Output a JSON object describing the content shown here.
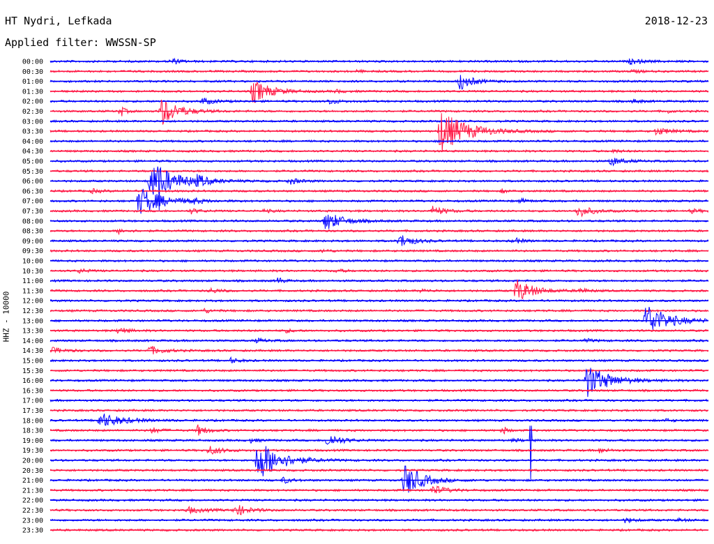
{
  "header": {
    "station": "HT Nydri, Lefkada",
    "date": "2018-12-23",
    "filter": "Applied filter: WWSSN-SP"
  },
  "channel_label": "HHZ - 10000",
  "colors": {
    "even_row": "#0000ff",
    "odd_row": "#ff1744"
  },
  "chart_data": {
    "type": "line",
    "title": "HT Nydri, Lefkada",
    "subtitle": "Applied filter: WWSSN-SP",
    "ylabel": "HHZ - 10000",
    "xlabel": "",
    "grid": false,
    "row_labels": [
      "00:00",
      "00:30",
      "01:00",
      "01:30",
      "02:00",
      "02:30",
      "03:00",
      "03:30",
      "04:00",
      "04:30",
      "05:00",
      "05:30",
      "06:00",
      "06:30",
      "07:00",
      "07:30",
      "08:00",
      "08:30",
      "09:00",
      "09:30",
      "10:00",
      "10:30",
      "11:00",
      "11:30",
      "12:00",
      "12:30",
      "13:00",
      "13:30",
      "14:00",
      "14:30",
      "15:00",
      "15:30",
      "16:00",
      "16:30",
      "17:00",
      "17:30",
      "18:00",
      "18:30",
      "19:00",
      "19:30",
      "20:00",
      "20:30",
      "21:00",
      "21:30",
      "22:00",
      "22:30",
      "23:00",
      "23:30"
    ],
    "row_duration_minutes": 30,
    "events": [
      {
        "row": 0,
        "t": 0.19,
        "amp": 0.6,
        "dur": 0.02
      },
      {
        "row": 0,
        "t": 0.89,
        "amp": 0.5,
        "dur": 0.03
      },
      {
        "row": 1,
        "t": 0.47,
        "amp": 0.2,
        "dur": 0.02
      },
      {
        "row": 1,
        "t": 0.89,
        "amp": 0.3,
        "dur": 0.02
      },
      {
        "row": 2,
        "t": 0.63,
        "amp": 1.8,
        "dur": 0.03
      },
      {
        "row": 3,
        "t": 0.32,
        "amp": 2.5,
        "dur": 0.04
      },
      {
        "row": 3,
        "t": 0.44,
        "amp": 0.3,
        "dur": 0.02
      },
      {
        "row": 4,
        "t": 0.24,
        "amp": 0.6,
        "dur": 0.03
      },
      {
        "row": 4,
        "t": 0.43,
        "amp": 0.6,
        "dur": 0.02
      },
      {
        "row": 4,
        "t": 0.89,
        "amp": 0.4,
        "dur": 0.02
      },
      {
        "row": 5,
        "t": 0.11,
        "amp": 1.2,
        "dur": 0.01
      },
      {
        "row": 5,
        "t": 0.18,
        "amp": 3.0,
        "dur": 0.04
      },
      {
        "row": 5,
        "t": 0.94,
        "amp": 0.4,
        "dur": 0.01
      },
      {
        "row": 7,
        "t": 0.61,
        "amp": 4.5,
        "dur": 0.06
      },
      {
        "row": 7,
        "t": 0.93,
        "amp": 0.8,
        "dur": 0.03
      },
      {
        "row": 9,
        "t": 0.86,
        "amp": 0.3,
        "dur": 0.02
      },
      {
        "row": 10,
        "t": 0.86,
        "amp": 0.9,
        "dur": 0.03
      },
      {
        "row": 12,
        "t": 0.17,
        "amp": 4.0,
        "dur": 0.06
      },
      {
        "row": 12,
        "t": 0.23,
        "amp": 0.9,
        "dur": 0.02
      },
      {
        "row": 12,
        "t": 0.37,
        "amp": 0.7,
        "dur": 0.02
      },
      {
        "row": 13,
        "t": 0.07,
        "amp": 0.4,
        "dur": 0.02
      },
      {
        "row": 13,
        "t": 0.69,
        "amp": 0.4,
        "dur": 0.01
      },
      {
        "row": 14,
        "t": 0.15,
        "amp": 3.0,
        "dur": 0.05
      },
      {
        "row": 14,
        "t": 0.22,
        "amp": 0.6,
        "dur": 0.02
      },
      {
        "row": 14,
        "t": 0.72,
        "amp": 0.4,
        "dur": 0.02
      },
      {
        "row": 15,
        "t": 0.22,
        "amp": 0.5,
        "dur": 0.02
      },
      {
        "row": 15,
        "t": 0.33,
        "amp": 0.3,
        "dur": 0.02
      },
      {
        "row": 15,
        "t": 0.59,
        "amp": 0.9,
        "dur": 0.03
      },
      {
        "row": 15,
        "t": 0.81,
        "amp": 1.3,
        "dur": 0.03
      },
      {
        "row": 15,
        "t": 0.98,
        "amp": 0.4,
        "dur": 0.02
      },
      {
        "row": 16,
        "t": 0.43,
        "amp": 2.0,
        "dur": 0.04
      },
      {
        "row": 17,
        "t": 0.11,
        "amp": 0.5,
        "dur": 0.02
      },
      {
        "row": 18,
        "t": 0.54,
        "amp": 1.4,
        "dur": 0.03
      },
      {
        "row": 18,
        "t": 0.71,
        "amp": 0.6,
        "dur": 0.02
      },
      {
        "row": 19,
        "t": 0.42,
        "amp": 0.3,
        "dur": 0.02
      },
      {
        "row": 21,
        "t": 0.05,
        "amp": 0.4,
        "dur": 0.02
      },
      {
        "row": 21,
        "t": 0.44,
        "amp": 0.3,
        "dur": 0.02
      },
      {
        "row": 22,
        "t": 0.35,
        "amp": 0.8,
        "dur": 0.01
      },
      {
        "row": 23,
        "t": 0.25,
        "amp": 0.5,
        "dur": 0.02
      },
      {
        "row": 23,
        "t": 0.57,
        "amp": 0.3,
        "dur": 0.02
      },
      {
        "row": 23,
        "t": 0.72,
        "amp": 2.4,
        "dur": 0.04
      },
      {
        "row": 23,
        "t": 0.81,
        "amp": 0.5,
        "dur": 0.02
      },
      {
        "row": 25,
        "t": 0.24,
        "amp": 0.4,
        "dur": 0.02
      },
      {
        "row": 26,
        "t": 0.92,
        "amp": 3.5,
        "dur": 0.05
      },
      {
        "row": 27,
        "t": 0.11,
        "amp": 0.8,
        "dur": 0.02
      },
      {
        "row": 27,
        "t": 0.36,
        "amp": 0.4,
        "dur": 0.02
      },
      {
        "row": 28,
        "t": 0.32,
        "amp": 0.4,
        "dur": 0.02
      },
      {
        "row": 28,
        "t": 0.82,
        "amp": 0.3,
        "dur": 0.02
      },
      {
        "row": 29,
        "t": 0.0,
        "amp": 1.0,
        "dur": 0.03
      },
      {
        "row": 29,
        "t": 0.16,
        "amp": 0.9,
        "dur": 0.03
      },
      {
        "row": 30,
        "t": 0.28,
        "amp": 0.5,
        "dur": 0.02
      },
      {
        "row": 32,
        "t": 0.83,
        "amp": 3.5,
        "dur": 0.05
      },
      {
        "row": 36,
        "t": 0.09,
        "amp": 1.6,
        "dur": 0.05
      },
      {
        "row": 36,
        "t": 0.94,
        "amp": 0.3,
        "dur": 0.02
      },
      {
        "row": 37,
        "t": 0.16,
        "amp": 0.6,
        "dur": 0.02
      },
      {
        "row": 37,
        "t": 0.23,
        "amp": 1.1,
        "dur": 0.02
      },
      {
        "row": 37,
        "t": 0.69,
        "amp": 0.9,
        "dur": 0.01
      },
      {
        "row": 38,
        "t": 0.31,
        "amp": 0.4,
        "dur": 0.02
      },
      {
        "row": 38,
        "t": 0.43,
        "amp": 1.4,
        "dur": 0.03
      },
      {
        "row": 38,
        "t": 0.71,
        "amp": 0.3,
        "dur": 0.02
      },
      {
        "row": 39,
        "t": 0.25,
        "amp": 0.9,
        "dur": 0.03
      },
      {
        "row": 39,
        "t": 0.84,
        "amp": 0.5,
        "dur": 0.02
      },
      {
        "row": 40,
        "t": 0.33,
        "amp": 4.5,
        "dur": 0.05
      },
      {
        "row": 42,
        "t": 0.36,
        "amp": 0.6,
        "dur": 0.02
      },
      {
        "row": 42,
        "t": 0.55,
        "amp": 3.5,
        "dur": 0.04
      },
      {
        "row": 43,
        "t": 0.59,
        "amp": 1.0,
        "dur": 0.03
      },
      {
        "row": 45,
        "t": 0.22,
        "amp": 0.6,
        "dur": 0.04
      },
      {
        "row": 45,
        "t": 0.29,
        "amp": 1.2,
        "dur": 0.03
      },
      {
        "row": 46,
        "t": 0.88,
        "amp": 0.5,
        "dur": 0.02
      },
      {
        "row": 46,
        "t": 0.96,
        "amp": 0.3,
        "dur": 0.02
      }
    ],
    "glitches": [
      {
        "row": 12,
        "t": 0.165,
        "up": 2.0,
        "down": 6.0
      },
      {
        "row": 38,
        "t": 0.73,
        "up": 3.0,
        "down": 8.0
      }
    ]
  }
}
